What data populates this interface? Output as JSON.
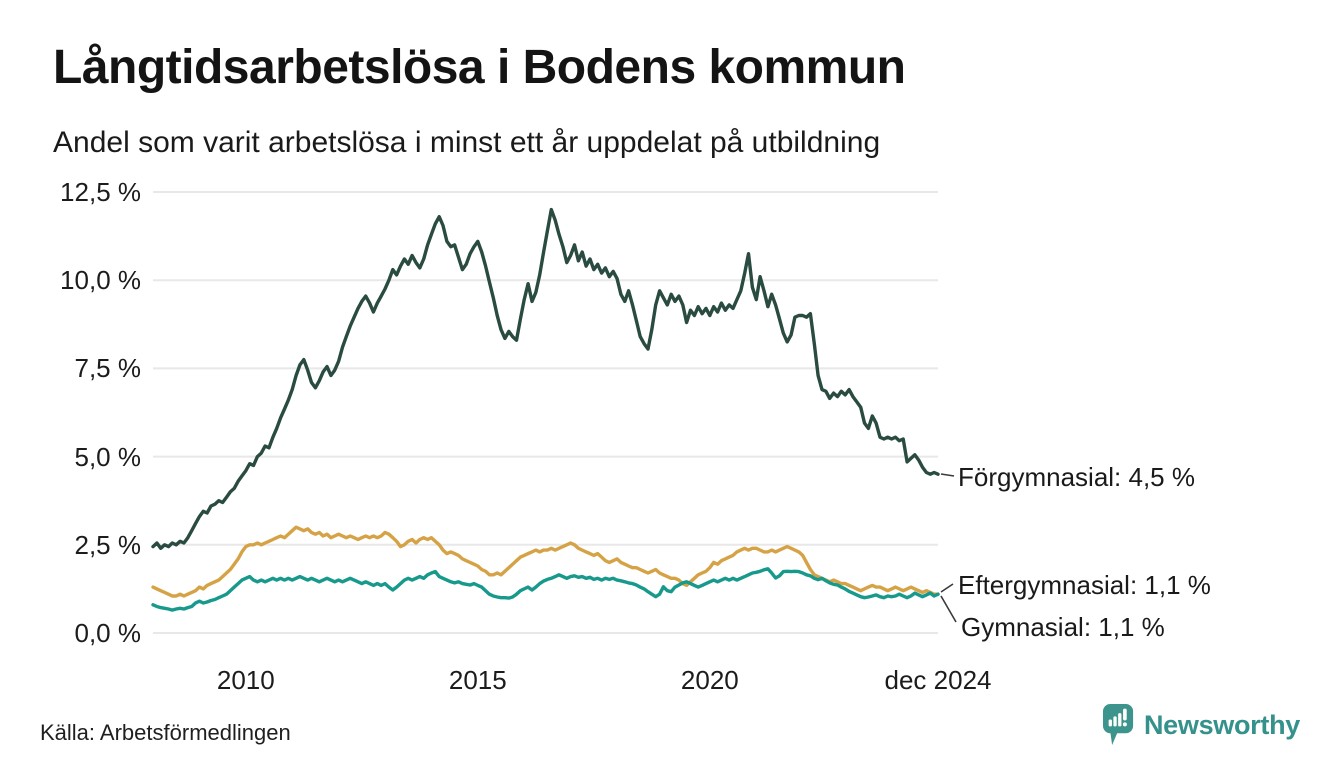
{
  "header": {
    "title": "Långtidsarbetslösa i Bodens kommun",
    "subtitle": "Andel som varit arbetslösa i minst ett år uppdelat på utbildning"
  },
  "footer": {
    "source": "Källa: Arbetsförmedlingen",
    "brand": "Newsworthy"
  },
  "chart_data": {
    "type": "line",
    "title": "Långtidsarbetslösa i Bodens kommun",
    "subtitle": "Andel som varit arbetslösa i minst ett år uppdelat på utbildning",
    "unit": "%",
    "grid": true,
    "x_start": "2008-01",
    "x_end": "2024-12",
    "ylim": [
      0,
      12.5
    ],
    "yticks": [
      "0,0 %",
      "2,5 %",
      "5,0 %",
      "7,5 %",
      "10,0 %",
      "12,5 %"
    ],
    "ytick_values": [
      0,
      2.5,
      5,
      7.5,
      10,
      12.5
    ],
    "xticks": [
      {
        "label": "2010",
        "year": 2010.0
      },
      {
        "label": "2015",
        "year": 2015.0
      },
      {
        "label": "2020",
        "year": 2020.0
      },
      {
        "label": "dec 2024",
        "year": 2024.917
      }
    ],
    "series": [
      {
        "name": "Förgymnasial",
        "end_label": "Förgymnasial: 4,5 %",
        "end_value": "4,5 %",
        "color": "#2a4b41",
        "values": [
          2.45,
          2.55,
          2.4,
          2.5,
          2.45,
          2.55,
          2.5,
          2.6,
          2.55,
          2.7,
          2.9,
          3.1,
          3.3,
          3.45,
          3.4,
          3.6,
          3.65,
          3.75,
          3.7,
          3.85,
          4.0,
          4.1,
          4.3,
          4.45,
          4.6,
          4.8,
          4.75,
          5.0,
          5.1,
          5.3,
          5.25,
          5.55,
          5.8,
          6.1,
          6.35,
          6.6,
          6.9,
          7.3,
          7.6,
          7.75,
          7.45,
          7.1,
          6.95,
          7.15,
          7.4,
          7.55,
          7.3,
          7.45,
          7.7,
          8.1,
          8.4,
          8.7,
          8.95,
          9.2,
          9.4,
          9.55,
          9.35,
          9.1,
          9.35,
          9.55,
          9.75,
          10.0,
          10.3,
          10.15,
          10.4,
          10.6,
          10.45,
          10.7,
          10.5,
          10.35,
          10.6,
          11.0,
          11.3,
          11.6,
          11.8,
          11.55,
          11.1,
          10.95,
          11.0,
          10.65,
          10.3,
          10.45,
          10.75,
          10.95,
          11.1,
          10.8,
          10.4,
          9.95,
          9.5,
          9.0,
          8.6,
          8.35,
          8.55,
          8.4,
          8.3,
          8.9,
          9.45,
          9.9,
          9.4,
          9.65,
          10.15,
          10.8,
          11.4,
          12.0,
          11.7,
          11.3,
          10.95,
          10.5,
          10.7,
          11.0,
          10.55,
          10.8,
          10.4,
          10.6,
          10.3,
          10.45,
          10.2,
          10.35,
          10.1,
          10.25,
          10.05,
          9.6,
          9.4,
          9.7,
          9.3,
          8.85,
          8.4,
          8.2,
          8.05,
          8.6,
          9.3,
          9.7,
          9.5,
          9.3,
          9.6,
          9.4,
          9.55,
          9.3,
          8.8,
          9.15,
          9.0,
          9.25,
          9.05,
          9.2,
          9.0,
          9.25,
          9.1,
          9.35,
          9.15,
          9.3,
          9.2,
          9.45,
          9.7,
          10.2,
          10.75,
          9.8,
          9.45,
          10.1,
          9.7,
          9.25,
          9.6,
          9.3,
          8.9,
          8.5,
          8.25,
          8.45,
          8.95,
          9.0,
          9.0,
          8.95,
          9.05,
          8.2,
          7.3,
          6.9,
          6.85,
          6.65,
          6.8,
          6.7,
          6.85,
          6.75,
          6.9,
          6.7,
          6.55,
          6.4,
          5.95,
          5.8,
          6.15,
          5.95,
          5.55,
          5.5,
          5.55,
          5.5,
          5.55,
          5.45,
          5.5,
          4.85,
          4.95,
          5.05,
          4.9,
          4.7,
          4.55,
          4.5,
          4.55,
          4.5
        ]
      },
      {
        "name": "Eftergymnasial",
        "end_label": "Eftergymnasial: 1,1 %",
        "end_value": "1,1 %",
        "color": "#d5a345",
        "values": [
          1.3,
          1.25,
          1.2,
          1.15,
          1.1,
          1.05,
          1.05,
          1.1,
          1.05,
          1.1,
          1.15,
          1.2,
          1.3,
          1.25,
          1.35,
          1.4,
          1.45,
          1.5,
          1.6,
          1.7,
          1.8,
          1.95,
          2.1,
          2.3,
          2.45,
          2.5,
          2.5,
          2.55,
          2.5,
          2.55,
          2.6,
          2.65,
          2.7,
          2.75,
          2.7,
          2.8,
          2.9,
          3.0,
          2.95,
          2.9,
          2.95,
          2.85,
          2.8,
          2.85,
          2.75,
          2.8,
          2.7,
          2.75,
          2.8,
          2.75,
          2.7,
          2.75,
          2.7,
          2.65,
          2.7,
          2.75,
          2.7,
          2.75,
          2.7,
          2.75,
          2.85,
          2.8,
          2.7,
          2.6,
          2.45,
          2.5,
          2.6,
          2.65,
          2.55,
          2.65,
          2.7,
          2.65,
          2.7,
          2.6,
          2.5,
          2.35,
          2.25,
          2.3,
          2.25,
          2.2,
          2.1,
          2.05,
          2.0,
          1.95,
          1.9,
          1.8,
          1.75,
          1.65,
          1.65,
          1.7,
          1.65,
          1.75,
          1.85,
          1.95,
          2.05,
          2.15,
          2.2,
          2.25,
          2.3,
          2.35,
          2.3,
          2.35,
          2.35,
          2.4,
          2.35,
          2.4,
          2.45,
          2.5,
          2.55,
          2.5,
          2.4,
          2.35,
          2.3,
          2.25,
          2.2,
          2.25,
          2.15,
          2.05,
          2.0,
          2.05,
          2.1,
          2.0,
          1.95,
          1.9,
          1.85,
          1.85,
          1.8,
          1.75,
          1.7,
          1.75,
          1.8,
          1.7,
          1.65,
          1.6,
          1.55,
          1.55,
          1.5,
          1.4,
          1.35,
          1.45,
          1.55,
          1.65,
          1.7,
          1.75,
          1.85,
          2.0,
          1.95,
          2.05,
          2.1,
          2.15,
          2.2,
          2.3,
          2.35,
          2.4,
          2.35,
          2.4,
          2.4,
          2.35,
          2.3,
          2.3,
          2.35,
          2.3,
          2.35,
          2.4,
          2.45,
          2.4,
          2.35,
          2.3,
          2.2,
          2.0,
          1.8,
          1.65,
          1.6,
          1.55,
          1.5,
          1.45,
          1.5,
          1.45,
          1.4,
          1.4,
          1.35,
          1.3,
          1.25,
          1.2,
          1.25,
          1.3,
          1.35,
          1.3,
          1.3,
          1.25,
          1.2,
          1.25,
          1.3,
          1.25,
          1.2,
          1.25,
          1.3,
          1.25,
          1.2,
          1.15,
          1.2,
          1.15,
          1.1,
          1.1
        ]
      },
      {
        "name": "Gymnasial",
        "end_label": "Gymnasial: 1,1 %",
        "end_value": "1,1 %",
        "color": "#17998c",
        "values": [
          0.8,
          0.75,
          0.72,
          0.7,
          0.68,
          0.65,
          0.68,
          0.7,
          0.68,
          0.72,
          0.75,
          0.85,
          0.9,
          0.85,
          0.88,
          0.92,
          0.95,
          1.0,
          1.05,
          1.1,
          1.2,
          1.3,
          1.4,
          1.5,
          1.55,
          1.6,
          1.5,
          1.45,
          1.5,
          1.45,
          1.5,
          1.55,
          1.5,
          1.55,
          1.5,
          1.55,
          1.5,
          1.55,
          1.6,
          1.55,
          1.5,
          1.55,
          1.5,
          1.45,
          1.5,
          1.55,
          1.5,
          1.45,
          1.5,
          1.45,
          1.5,
          1.55,
          1.5,
          1.45,
          1.4,
          1.45,
          1.4,
          1.35,
          1.4,
          1.35,
          1.4,
          1.3,
          1.22,
          1.3,
          1.4,
          1.5,
          1.55,
          1.5,
          1.55,
          1.6,
          1.55,
          1.65,
          1.7,
          1.74,
          1.6,
          1.55,
          1.5,
          1.45,
          1.42,
          1.45,
          1.4,
          1.38,
          1.36,
          1.4,
          1.35,
          1.3,
          1.2,
          1.1,
          1.05,
          1.02,
          1.0,
          1.0,
          0.99,
          1.02,
          1.1,
          1.2,
          1.25,
          1.3,
          1.22,
          1.3,
          1.4,
          1.47,
          1.52,
          1.55,
          1.6,
          1.65,
          1.6,
          1.55,
          1.6,
          1.62,
          1.58,
          1.6,
          1.55,
          1.58,
          1.52,
          1.55,
          1.5,
          1.55,
          1.52,
          1.55,
          1.5,
          1.48,
          1.45,
          1.42,
          1.4,
          1.36,
          1.3,
          1.25,
          1.17,
          1.1,
          1.03,
          1.1,
          1.31,
          1.2,
          1.17,
          1.3,
          1.36,
          1.42,
          1.45,
          1.4,
          1.35,
          1.3,
          1.35,
          1.4,
          1.45,
          1.5,
          1.45,
          1.5,
          1.55,
          1.5,
          1.55,
          1.5,
          1.55,
          1.6,
          1.65,
          1.7,
          1.72,
          1.75,
          1.79,
          1.82,
          1.7,
          1.56,
          1.62,
          1.74,
          1.75,
          1.74,
          1.75,
          1.74,
          1.7,
          1.65,
          1.62,
          1.55,
          1.51,
          1.55,
          1.48,
          1.42,
          1.38,
          1.36,
          1.3,
          1.25,
          1.18,
          1.13,
          1.08,
          1.03,
          1.0,
          1.02,
          1.05,
          1.08,
          1.03,
          1.0,
          1.05,
          1.03,
          1.05,
          1.1,
          1.05,
          1.0,
          1.05,
          1.13,
          1.08,
          1.03,
          1.08,
          1.13,
          1.05,
          1.1
        ]
      }
    ],
    "colors": {
      "grid": "#e8e8ea",
      "connector": "#3a3a3a",
      "brand_teal": "#35918b"
    }
  }
}
